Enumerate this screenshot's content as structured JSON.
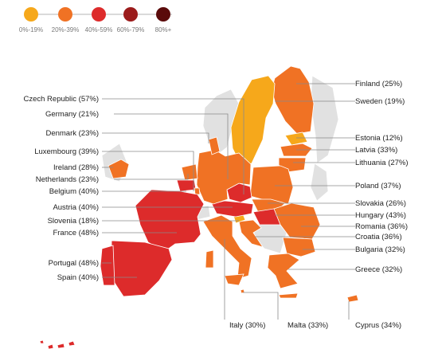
{
  "legend": {
    "bins": [
      {
        "label": "0%-19%",
        "color": "#f6a81b"
      },
      {
        "label": "20%-39%",
        "color": "#f07224"
      },
      {
        "label": "40%-59%",
        "color": "#dd2b2b"
      },
      {
        "label": "60%-79%",
        "color": "#9b1b1b"
      },
      {
        "label": "80%+",
        "color": "#5a0a0a"
      }
    ]
  },
  "nonmember_color": "#e1e1e1",
  "countries": [
    {
      "key": "finland",
      "label": "Finland (25%)",
      "value": 25
    },
    {
      "key": "sweden",
      "label": "Sweden (19%)",
      "value": 19
    },
    {
      "key": "estonia",
      "label": "Estonia (12%)",
      "value": 12
    },
    {
      "key": "latvia",
      "label": "Latvia (33%)",
      "value": 33
    },
    {
      "key": "lithuania",
      "label": "Lithuania (27%)",
      "value": 27
    },
    {
      "key": "poland",
      "label": "Poland (37%)",
      "value": 37
    },
    {
      "key": "slovakia",
      "label": "Slovakia (26%)",
      "value": 26
    },
    {
      "key": "hungary",
      "label": "Hungary (43%)",
      "value": 43
    },
    {
      "key": "romania",
      "label": "Romania (36%)",
      "value": 36
    },
    {
      "key": "croatia",
      "label": "Croatia (36%)",
      "value": 36
    },
    {
      "key": "bulgaria",
      "label": "Bulgaria (32%)",
      "value": 32
    },
    {
      "key": "greece",
      "label": "Greece (32%)",
      "value": 32
    },
    {
      "key": "czech",
      "label": "Czech Republic (57%)",
      "value": 57
    },
    {
      "key": "germany",
      "label": "Germany (21%)",
      "value": 21
    },
    {
      "key": "denmark",
      "label": "Denmark (23%)",
      "value": 23
    },
    {
      "key": "luxembourg",
      "label": "Luxembourg (39%)",
      "value": 39
    },
    {
      "key": "ireland",
      "label": "Ireland (28%)",
      "value": 28
    },
    {
      "key": "netherlands",
      "label": "Netherlands (23%)",
      "value": 23
    },
    {
      "key": "belgium",
      "label": "Belgium (40%)",
      "value": 40
    },
    {
      "key": "austria",
      "label": "Austria (40%)",
      "value": 40
    },
    {
      "key": "slovenia",
      "label": "Slovenia (18%)",
      "value": 18
    },
    {
      "key": "france",
      "label": "France (48%)",
      "value": 48
    },
    {
      "key": "portugal",
      "label": "Portugal (48%)",
      "value": 48
    },
    {
      "key": "spain",
      "label": "Spain (40%)",
      "value": 40
    },
    {
      "key": "italy",
      "label": "Italy (30%)",
      "value": 30
    },
    {
      "key": "malta",
      "label": "Malta (33%)",
      "value": 33
    },
    {
      "key": "cyprus",
      "label": "Cyprus (34%)",
      "value": 34
    }
  ]
}
